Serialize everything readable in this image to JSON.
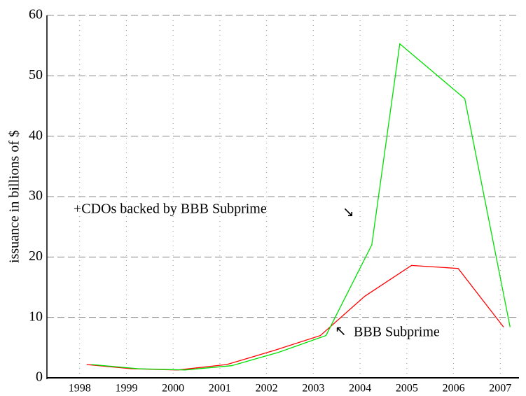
{
  "chart_data": {
    "type": "line",
    "y_label": "issuance in billions of $",
    "xlim": [
      1997.8,
      2007.9
    ],
    "xticks": [
      {
        "value": 1998.5,
        "label": "1998"
      },
      {
        "value": 1999.5,
        "label": "1999"
      },
      {
        "value": 2000.5,
        "label": "2000"
      },
      {
        "value": 2001.5,
        "label": "2001"
      },
      {
        "value": 2002.5,
        "label": "2002"
      },
      {
        "value": 2003.5,
        "label": "2003"
      },
      {
        "value": 2004.5,
        "label": "2004"
      },
      {
        "value": 2005.5,
        "label": "2005"
      },
      {
        "value": 2006.5,
        "label": "2006"
      },
      {
        "value": 2007.5,
        "label": "2007"
      }
    ],
    "ylim": [
      0,
      60
    ],
    "yticks": [
      0,
      10,
      20,
      30,
      40,
      50,
      60
    ],
    "grid": true,
    "series": [
      {
        "name": "BBB Subprime",
        "color": "#ff0000",
        "x": [
          1998.65,
          1999.6,
          2000.6,
          2001.65,
          2002.65,
          2003.65,
          2004.6,
          2005.6,
          2006.6,
          2007.57
        ],
        "values": [
          2.2,
          1.5,
          1.3,
          2.2,
          4.5,
          7.0,
          13.5,
          18.6,
          18.1,
          8.4
        ]
      },
      {
        "name": "+CDOs backed by BBB Subprime",
        "color": "#00e000",
        "x": [
          1998.75,
          1999.75,
          2000.75,
          2001.75,
          2002.75,
          2003.77,
          2004.75,
          2005.35,
          2006.74,
          2007.71
        ],
        "values": [
          2.2,
          1.5,
          1.3,
          2.0,
          4.2,
          7.0,
          22.0,
          55.3,
          46.2,
          8.4
        ]
      }
    ]
  }
}
